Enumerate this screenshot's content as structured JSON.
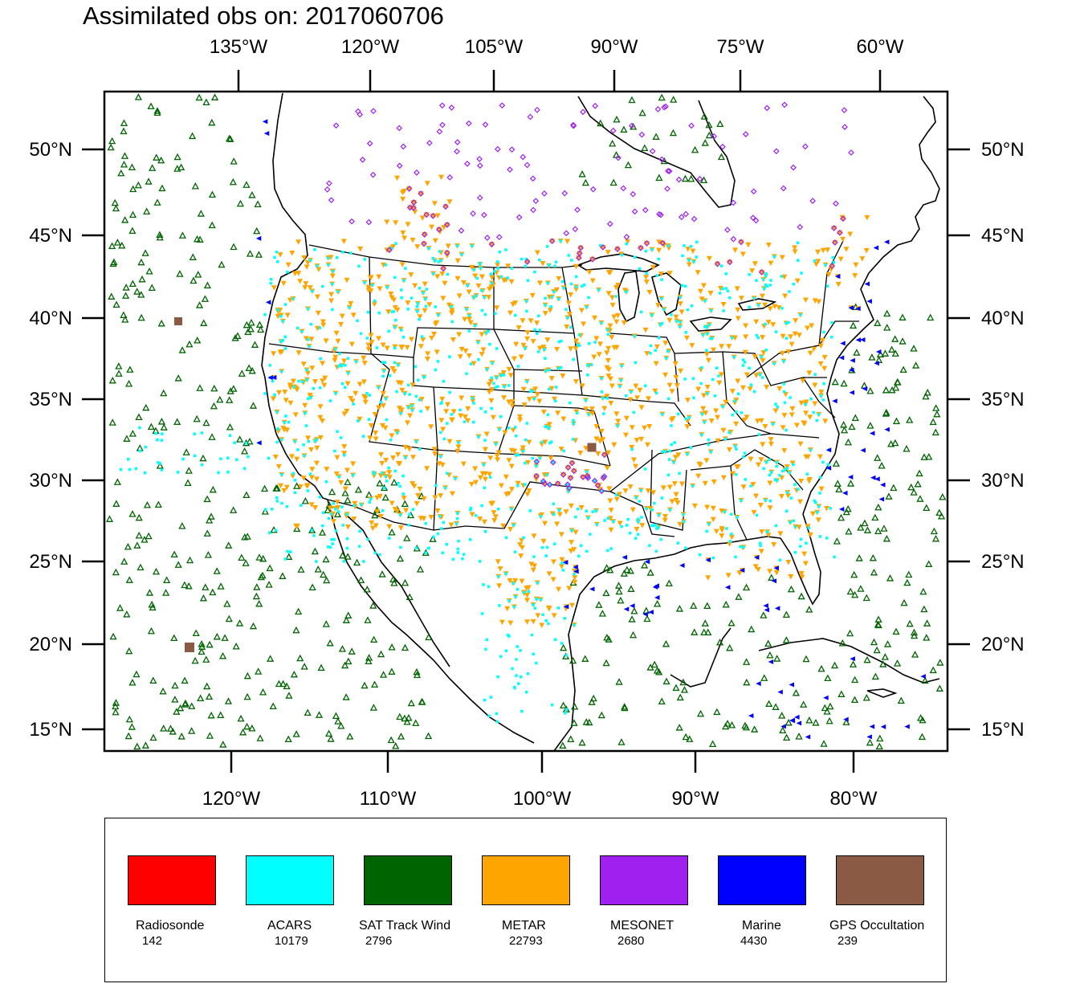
{
  "title": "Assimilated obs on: 2017060706",
  "map": {
    "top_lon_labels": [
      "135°W",
      "120°W",
      "105°W",
      "90°W",
      "75°W",
      "60°W"
    ],
    "bottom_lon_labels": [
      "120°W",
      "110°W",
      "100°W",
      "90°W",
      "80°W"
    ],
    "lat_labels": [
      "50°N",
      "45°N",
      "40°N",
      "35°N",
      "30°N",
      "25°N",
      "20°N",
      "15°N"
    ]
  },
  "legend": [
    {
      "name": "Radiosonde",
      "count": "142",
      "color": "#ff0000"
    },
    {
      "name": "ACARS",
      "count": "10179",
      "color": "#00ffff"
    },
    {
      "name": "SAT Track Wind",
      "count": "2796",
      "color": "#006400"
    },
    {
      "name": "METAR",
      "count": "22793",
      "color": "#ffa500"
    },
    {
      "name": "MESONET",
      "count": "2680",
      "color": "#a020f0"
    },
    {
      "name": "Marine",
      "count": "4430",
      "color": "#0000ff"
    },
    {
      "name": "GPS Occultation",
      "count": "239",
      "color": "#8b5a45"
    }
  ]
}
